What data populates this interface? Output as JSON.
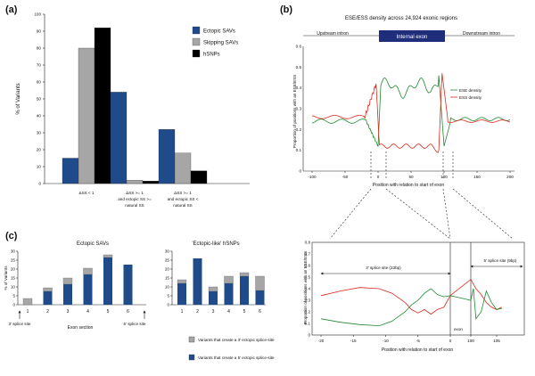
{
  "figure": {
    "panels": [
      {
        "label": "(a)",
        "chart_data": {
          "type": "bar",
          "ylabel": "% of Variants",
          "ylim": [
            0,
            100
          ],
          "yticks": [
            0,
            10,
            20,
            30,
            40,
            50,
            60,
            70,
            80,
            90,
            100
          ],
          "categories": [
            "ΔSS < 1",
            "ΔSS >= 1\nand ectopic SS >=\nnatural SS",
            "ΔSS >= 1\nand ectopic SS <\nnatural SS"
          ],
          "category_lines": [
            [
              "ΔSS < 1"
            ],
            [
              "ΔSS >= 1",
              "and ectopic SS >=",
              "natural SS"
            ],
            [
              "ΔSS >= 1",
              "and ectopic SS <",
              "natural SS"
            ]
          ],
          "series": [
            {
              "name": "Ectopic SAVs",
              "color": "#1f4b8a",
              "values": [
                15,
                54,
                32
              ]
            },
            {
              "name": "Skipping SAVs",
              "color": "#a6a6a6",
              "values": [
                80,
                2,
                18
              ]
            },
            {
              "name": "hSNPs",
              "color": "#000000",
              "values": [
                92,
                1.5,
                7.5
              ]
            }
          ]
        }
      },
      {
        "label": "(b)",
        "chart_data": {
          "type": "line",
          "title": "ESE/ESS density across 24,924 exonic regions",
          "xlabel": "Position with relation to start of exon",
          "ylabel": "Proportion of positions with an ESE/ESS",
          "xlim": [
            -100,
            200
          ],
          "xticks": [
            -100,
            -50,
            0,
            50,
            100,
            150,
            200
          ],
          "ylim": [
            0,
            0.6
          ],
          "yticks": [
            0,
            0.1,
            0.2,
            0.3,
            0.4,
            0.5,
            0.6
          ],
          "regions": [
            "Upstream intron",
            "Internal exon",
            "Downstream intron"
          ],
          "series": [
            {
              "name": "ESE density",
              "color": "#1e8a2e"
            },
            {
              "name": "ESS density",
              "color": "#e0281e"
            }
          ]
        }
      },
      {
        "label": "",
        "chart_data": {
          "type": "line",
          "xlabel": "Position with relation to start of exon",
          "ylabel": "Proportion of positions with an ESE/ESS",
          "xlim": [
            -20,
            110
          ],
          "xticks": [
            -20,
            -15,
            -10,
            -5,
            0,
            100,
            105
          ],
          "ylim": [
            0,
            0.8
          ],
          "yticks": [
            0,
            0.1,
            0.2,
            0.3,
            0.4,
            0.5,
            0.6,
            0.7,
            0.8
          ],
          "annotations": [
            "3' splice site (23bp)",
            "5' splice site (9bp)",
            "exon"
          ],
          "series": [
            {
              "name": "ESE density",
              "color": "#1e8a2e"
            },
            {
              "name": "ESS density",
              "color": "#e0281e"
            }
          ]
        }
      },
      {
        "label": "(c)",
        "chart_data": [
          {
            "type": "bar",
            "title": "Ectopic SAVs",
            "xlabel": "Exon section",
            "ylabel": "% of Variants",
            "ylim": [
              0,
              30
            ],
            "yticks": [
              0,
              5,
              10,
              15,
              20,
              25,
              30
            ],
            "categories": [
              "1",
              "2",
              "3",
              "4",
              "5",
              "6"
            ],
            "series": [
              {
                "name": "Variants that create a 5' ectopic splice-site",
                "color": "#1f4b8a",
                "values": [
                  0,
                  7.5,
                  11.5,
                  17,
                  26.5,
                  22.5
                ]
              },
              {
                "name": "Variants that create a 3' ectopic splice-site",
                "color": "#a6a6a6",
                "values": [
                  3.5,
                  2,
                  3.5,
                  3.5,
                  1.5,
                  0
                ]
              }
            ],
            "start_marker": "3' splice site",
            "end_marker": "5' splice site"
          },
          {
            "type": "bar",
            "title": "'Ectopic-like' hSNPs",
            "ylim": [
              0,
              30
            ],
            "yticks": [
              0,
              5,
              10,
              15,
              20,
              25,
              30
            ],
            "categories": [
              "1",
              "2",
              "3",
              "4",
              "5",
              "6"
            ],
            "series": [
              {
                "name": "Variants that create a 5' ectopic splice-site",
                "color": "#1f4b8a",
                "values": [
                  12,
                  26,
                  7.5,
                  12,
                  16,
                  8
                ]
              },
              {
                "name": "Variants that create a 3' ectopic splice-site",
                "color": "#a6a6a6",
                "values": [
                  2,
                  0,
                  2.5,
                  4,
                  2,
                  8
                ]
              }
            ]
          }
        ]
      }
    ],
    "legend_c": [
      "Variants that create a 3' ectopic splice-site",
      "Variants that create a 5' ectopic splice-site"
    ]
  }
}
